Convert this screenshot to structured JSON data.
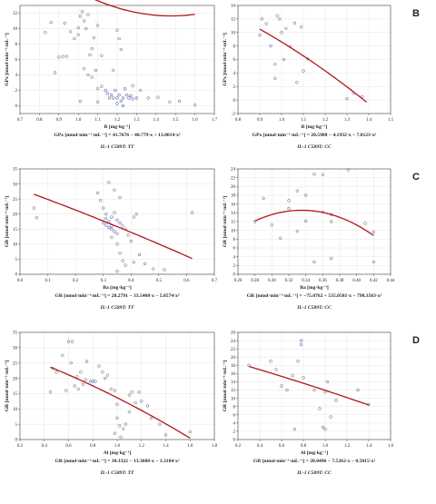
{
  "chart_data": [
    {
      "type": "scatter",
      "panel_letter": "",
      "ylabel": "GPx [nmol·min⁻¹·mL⁻¹]",
      "xlabel": "B [mg·kg⁻¹]",
      "equation": "GPx [nmol·min⁻¹·mL⁻¹] = 41.7676 − 40.779·x + 13.8014·x²",
      "genotype": "IL-1 C589T: TT",
      "xlim": [
        0.7,
        1.7
      ],
      "ylim": [
        -1,
        13
      ],
      "xticks": [
        0.7,
        0.8,
        0.9,
        1.0,
        1.1,
        1.2,
        1.3,
        1.4,
        1.5,
        1.6,
        1.7
      ],
      "yticks": [
        0,
        2,
        4,
        6,
        8,
        10,
        12
      ],
      "xtick_labels": [
        "0.7",
        "0.8",
        "0.9",
        "1.0",
        "1.1",
        "1.2",
        "1.3",
        "1.4",
        "1.5",
        "1.6",
        "1.7"
      ],
      "ytick_labels": [
        "0",
        "2",
        "4",
        "6",
        "8",
        "10",
        "12"
      ],
      "fit": {
        "kind": "quadratic",
        "coef": [
          41.7676,
          -40.779,
          13.8014
        ],
        "x_range": [
          0.83,
          1.6
        ]
      },
      "points": [
        [
          0.83,
          9.5
        ],
        [
          0.86,
          10.8
        ],
        [
          0.88,
          4.3
        ],
        [
          0.9,
          6.3
        ],
        [
          0.92,
          6.4
        ],
        [
          0.93,
          10.7
        ],
        [
          0.94,
          6.4
        ],
        [
          0.96,
          9.6
        ],
        [
          0.98,
          8.7
        ],
        [
          1.0,
          10.1
        ],
        [
          1.0,
          9.2
        ],
        [
          1.01,
          11.6
        ],
        [
          1.02,
          12.2
        ],
        [
          1.03,
          11.0
        ],
        [
          1.04,
          10.0
        ],
        [
          1.05,
          11.8
        ],
        [
          1.06,
          6.6
        ],
        [
          1.07,
          7.4
        ],
        [
          1.08,
          8.8
        ],
        [
          1.1,
          10.4
        ],
        [
          1.03,
          4.8
        ],
        [
          1.05,
          4.0
        ],
        [
          1.07,
          3.7
        ],
        [
          1.09,
          4.6
        ],
        [
          1.1,
          2.2
        ],
        [
          1.12,
          2.5
        ],
        [
          1.14,
          2.0
        ],
        [
          1.15,
          1.6
        ],
        [
          1.16,
          1.0
        ],
        [
          1.17,
          1.4
        ],
        [
          1.18,
          1.0
        ],
        [
          1.19,
          2.0
        ],
        [
          1.2,
          1.0
        ],
        [
          1.2,
          0.3
        ],
        [
          1.21,
          1.4
        ],
        [
          1.22,
          0.6
        ],
        [
          1.23,
          1.0
        ],
        [
          1.24,
          2.2
        ],
        [
          1.25,
          1.4
        ],
        [
          1.26,
          1.0
        ],
        [
          1.27,
          1.3
        ],
        [
          1.28,
          0.9
        ],
        [
          1.28,
          2.6
        ],
        [
          1.3,
          1.0
        ],
        [
          1.32,
          2.0
        ],
        [
          1.2,
          9.8
        ],
        [
          1.21,
          8.7
        ],
        [
          1.22,
          7.3
        ],
        [
          1.18,
          4.6
        ],
        [
          1.12,
          6.5
        ],
        [
          1.36,
          1.0
        ],
        [
          1.41,
          1.1
        ],
        [
          1.47,
          0.5
        ],
        [
          1.52,
          0.6
        ],
        [
          1.6,
          0.1
        ],
        [
          1.01,
          0.6
        ],
        [
          1.1,
          0.5
        ],
        [
          1.23,
          0.0
        ]
      ]
    },
    {
      "type": "scatter",
      "panel_letter": "B",
      "ylabel": "GPx [nmol·min⁻¹·mL⁻¹]",
      "xlabel": "B [mg·kg⁻¹]",
      "equation": "GPx [nmol·min⁻¹·mL⁻¹] = 20.5988 − 4.1932·x − 7.8123·x²",
      "genotype": "IL-1 C589T: CC",
      "xlim": [
        0.8,
        1.5
      ],
      "ylim": [
        -2,
        14
      ],
      "xticks": [
        0.8,
        0.9,
        1.0,
        1.1,
        1.2,
        1.3,
        1.4,
        1.5
      ],
      "yticks": [
        -2,
        0,
        2,
        4,
        6,
        8,
        10,
        12,
        14
      ],
      "xtick_labels": [
        "0.8",
        "0.9",
        "1.0",
        "1.1",
        "1.2",
        "1.3",
        "1.4",
        "1.5"
      ],
      "ytick_labels": [
        "-2",
        "0",
        "2",
        "4",
        "6",
        "8",
        "10",
        "12",
        "14"
      ],
      "fit": {
        "kind": "quadratic",
        "coef": [
          20.5988,
          -4.1932,
          -7.8123
        ],
        "x_range": [
          0.9,
          1.39
        ]
      },
      "points": [
        [
          0.9,
          9.6
        ],
        [
          0.91,
          12.0
        ],
        [
          0.93,
          11.3
        ],
        [
          0.95,
          8.0
        ],
        [
          0.97,
          5.3
        ],
        [
          0.98,
          12.5
        ],
        [
          0.99,
          12.0
        ],
        [
          1.0,
          10.0
        ],
        [
          1.01,
          6.0
        ],
        [
          1.02,
          10.6
        ],
        [
          1.04,
          7.9
        ],
        [
          1.06,
          11.4
        ],
        [
          1.07,
          2.6
        ],
        [
          1.09,
          10.8
        ],
        [
          1.1,
          4.3
        ],
        [
          1.12,
          6.1
        ],
        [
          1.3,
          0.2
        ],
        [
          1.33,
          1.0
        ],
        [
          1.37,
          0.5
        ],
        [
          0.97,
          3.2
        ]
      ]
    },
    {
      "type": "scatter",
      "panel_letter": "",
      "ylabel": "GR [nmol·min⁻¹·mL⁻¹]",
      "xlabel": "Ba [mg·kg⁻¹]",
      "equation": "GR [nmol·min⁻¹·mL⁻¹] = 28.2791 − 33.5408·x − 5.8574·x²",
      "genotype": "IL-1 C589T: TT",
      "xlim": [
        0.0,
        0.7
      ],
      "ylim": [
        0,
        35
      ],
      "xticks": [
        0.0,
        0.1,
        0.2,
        0.3,
        0.4,
        0.5,
        0.6,
        0.7
      ],
      "yticks": [
        0,
        5,
        10,
        15,
        20,
        25,
        30,
        35
      ],
      "xtick_labels": [
        "0.0",
        "0.1",
        "0.2",
        "0.3",
        "0.4",
        "0.5",
        "0.6",
        "0.7"
      ],
      "ytick_labels": [
        "0",
        "5",
        "10",
        "15",
        "20",
        "25",
        "30",
        "35"
      ],
      "fit": {
        "kind": "quadratic",
        "coef": [
          28.2791,
          -33.5408,
          -5.8574
        ],
        "x_range": [
          0.05,
          0.62
        ]
      },
      "points": [
        [
          0.05,
          22.0
        ],
        [
          0.06,
          18.8
        ],
        [
          0.28,
          27.0
        ],
        [
          0.29,
          24.5
        ],
        [
          0.3,
          22.0
        ],
        [
          0.31,
          20.0
        ],
        [
          0.31,
          18.5
        ],
        [
          0.32,
          17.5
        ],
        [
          0.33,
          16.0
        ],
        [
          0.33,
          15.0
        ],
        [
          0.34,
          14.2
        ],
        [
          0.35,
          13.5
        ],
        [
          0.3,
          17.0
        ],
        [
          0.31,
          16.3
        ],
        [
          0.32,
          15.5
        ],
        [
          0.33,
          19.0
        ],
        [
          0.34,
          20.5
        ],
        [
          0.35,
          18.0
        ],
        [
          0.36,
          17.0
        ],
        [
          0.37,
          16.0
        ],
        [
          0.38,
          15.0
        ],
        [
          0.39,
          13.0
        ],
        [
          0.4,
          11.0
        ],
        [
          0.32,
          30.5
        ],
        [
          0.34,
          28.0
        ],
        [
          0.36,
          25.5
        ],
        [
          0.35,
          10.0
        ],
        [
          0.36,
          7.0
        ],
        [
          0.37,
          4.5
        ],
        [
          0.38,
          3.0
        ],
        [
          0.41,
          4.0
        ],
        [
          0.43,
          6.5
        ],
        [
          0.45,
          3.5
        ],
        [
          0.48,
          1.8
        ],
        [
          0.52,
          1.5
        ],
        [
          0.41,
          19.0
        ],
        [
          0.42,
          20.0
        ],
        [
          0.62,
          20.5
        ],
        [
          0.35,
          1.0
        ],
        [
          0.33,
          12.3
        ]
      ]
    },
    {
      "type": "scatter",
      "panel_letter": "C",
      "ylabel": "GR [nmol·min⁻¹·mL⁻¹]",
      "xlabel": "Ba [mg·kg⁻¹]",
      "equation": "GR [nmol·min⁻¹·mL⁻¹] = −75.0762 + 535.0581·x − 798.3563·x²",
      "genotype": "IL-1 C589T: CC",
      "xlim": [
        0.26,
        0.44
      ],
      "ylim": [
        0,
        24
      ],
      "xticks": [
        0.26,
        0.28,
        0.3,
        0.32,
        0.34,
        0.36,
        0.38,
        0.4,
        0.42,
        0.44
      ],
      "yticks": [
        0,
        2,
        4,
        6,
        8,
        10,
        12,
        14,
        16,
        18,
        20,
        22,
        24
      ],
      "xtick_labels": [
        "0.26",
        "0.28",
        "0.30",
        "0.32",
        "0.34",
        "0.36",
        "0.38",
        "0.40",
        "0.42",
        "0.44"
      ],
      "ytick_labels": [
        "0",
        "2",
        "4",
        "6",
        "8",
        "10",
        "12",
        "14",
        "16",
        "18",
        "20",
        "22",
        "24"
      ],
      "fit": {
        "kind": "quadratic",
        "coef": [
          -75.0762,
          535.0581,
          -798.3563
        ],
        "x_range": [
          0.28,
          0.42
        ]
      },
      "points": [
        [
          0.28,
          12.0
        ],
        [
          0.29,
          17.3
        ],
        [
          0.3,
          11.2
        ],
        [
          0.31,
          8.2
        ],
        [
          0.32,
          15.0
        ],
        [
          0.32,
          16.8
        ],
        [
          0.33,
          19.0
        ],
        [
          0.33,
          9.8
        ],
        [
          0.34,
          12.1
        ],
        [
          0.34,
          18.0
        ],
        [
          0.35,
          22.8
        ],
        [
          0.35,
          2.8
        ],
        [
          0.36,
          14.2
        ],
        [
          0.36,
          22.7
        ],
        [
          0.37,
          13.6
        ],
        [
          0.37,
          12.0
        ],
        [
          0.37,
          3.6
        ],
        [
          0.39,
          23.8
        ],
        [
          0.41,
          11.6
        ],
        [
          0.42,
          2.8
        ],
        [
          0.42,
          9.6
        ]
      ]
    },
    {
      "type": "scatter",
      "panel_letter": "",
      "ylabel": "GR [nmol·min⁻¹·mL⁻¹]",
      "xlabel": "Al [mg·kg⁻¹]",
      "equation": "GR [nmol·min⁻¹·mL⁻¹] = 30.3322 − 13.3686·x − 3.3184·x²",
      "genotype": "IL-1 C589T: TT",
      "xlim": [
        0.2,
        1.8
      ],
      "ylim": [
        0,
        35
      ],
      "xticks": [
        0.2,
        0.4,
        0.6,
        0.8,
        1.0,
        1.2,
        1.4,
        1.6,
        1.8
      ],
      "yticks": [
        0,
        5,
        10,
        15,
        20,
        25,
        30,
        35
      ],
      "xtick_labels": [
        "0.2",
        "0.4",
        "0.6",
        "0.8",
        "1.0",
        "1.2",
        "1.4",
        "1.6",
        "1.8"
      ],
      "ytick_labels": [
        "0",
        "5",
        "10",
        "15",
        "20",
        "25",
        "30",
        "35"
      ],
      "fit": {
        "kind": "quadratic",
        "coef": [
          30.3322,
          -13.3686,
          -3.3184
        ],
        "x_range": [
          0.45,
          1.6
        ]
      },
      "points": [
        [
          0.45,
          15.5
        ],
        [
          0.47,
          23.2
        ],
        [
          0.5,
          22.0
        ],
        [
          0.55,
          27.5
        ],
        [
          0.58,
          16.0
        ],
        [
          0.6,
          32.0
        ],
        [
          0.62,
          25.0
        ],
        [
          0.63,
          32.0
        ],
        [
          0.65,
          17.5
        ],
        [
          0.67,
          20.5
        ],
        [
          0.68,
          16.5
        ],
        [
          0.7,
          22.0
        ],
        [
          0.72,
          18.0
        ],
        [
          0.74,
          19.5
        ],
        [
          0.75,
          25.5
        ],
        [
          0.78,
          19.0
        ],
        [
          0.8,
          19.0
        ],
        [
          0.82,
          19.0
        ],
        [
          0.85,
          24.0
        ],
        [
          0.88,
          22.0
        ],
        [
          0.9,
          20.0
        ],
        [
          0.92,
          21.0
        ],
        [
          0.95,
          16.5
        ],
        [
          0.98,
          16.0
        ],
        [
          1.0,
          11.5
        ],
        [
          1.0,
          7.0
        ],
        [
          1.02,
          4.5
        ],
        [
          1.05,
          3.5
        ],
        [
          1.07,
          5.0
        ],
        [
          1.1,
          9.0
        ],
        [
          1.1,
          14.5
        ],
        [
          1.12,
          15.5
        ],
        [
          1.15,
          12.0
        ],
        [
          1.18,
          15.5
        ],
        [
          1.2,
          12.5
        ],
        [
          1.25,
          11.0
        ],
        [
          1.28,
          7.0
        ],
        [
          1.35,
          5.0
        ],
        [
          1.4,
          1.5
        ],
        [
          1.6,
          2.5
        ],
        [
          0.98,
          2.0
        ],
        [
          1.03,
          0.8
        ]
      ]
    },
    {
      "type": "scatter",
      "panel_letter": "D",
      "ylabel": "GR [nmol·min⁻¹·mL⁻¹]",
      "xlabel": "Al [mg·kg⁻¹]",
      "equation": "GR [nmol·min⁻¹·mL⁻¹] = 20.0496 − 7.5262·x − 0.5815·x²",
      "genotype": "IL-1 C589T: CC",
      "xlim": [
        0.2,
        1.6
      ],
      "ylim": [
        0,
        26
      ],
      "xticks": [
        0.2,
        0.4,
        0.6,
        0.8,
        1.0,
        1.2,
        1.4,
        1.6
      ],
      "yticks": [
        0,
        2,
        4,
        6,
        8,
        10,
        12,
        14,
        16,
        18,
        20,
        22,
        24,
        26
      ],
      "xtick_labels": [
        "0.2",
        "0.4",
        "0.6",
        "0.8",
        "1.0",
        "1.2",
        "1.4",
        "1.6"
      ],
      "ytick_labels": [
        "0",
        "2",
        "4",
        "6",
        "8",
        "10",
        "12",
        "14",
        "16",
        "18",
        "20",
        "22",
        "24",
        "26"
      ],
      "fit": {
        "kind": "quadratic",
        "coef": [
          20.0496,
          -7.5262,
          -0.5815
        ],
        "x_range": [
          0.3,
          1.4
        ]
      },
      "points": [
        [
          0.3,
          18.0
        ],
        [
          0.5,
          19.0
        ],
        [
          0.55,
          17.0
        ],
        [
          0.6,
          13.0
        ],
        [
          0.65,
          12.0
        ],
        [
          0.7,
          15.5
        ],
        [
          0.72,
          2.5
        ],
        [
          0.75,
          19.0
        ],
        [
          0.78,
          23.0
        ],
        [
          0.78,
          24.0
        ],
        [
          0.8,
          15.0
        ],
        [
          0.9,
          12.0
        ],
        [
          0.95,
          7.5
        ],
        [
          0.98,
          3.0
        ],
        [
          1.0,
          2.5
        ],
        [
          1.0,
          11.5
        ],
        [
          1.02,
          14.0
        ],
        [
          1.05,
          5.5
        ],
        [
          1.1,
          9.5
        ],
        [
          1.3,
          12.0
        ],
        [
          1.4,
          8.5
        ]
      ]
    }
  ],
  "colors": {
    "fit_line": "#b3151b",
    "points_stroke": "#555566",
    "highlight_points": "#2a3ea0"
  }
}
